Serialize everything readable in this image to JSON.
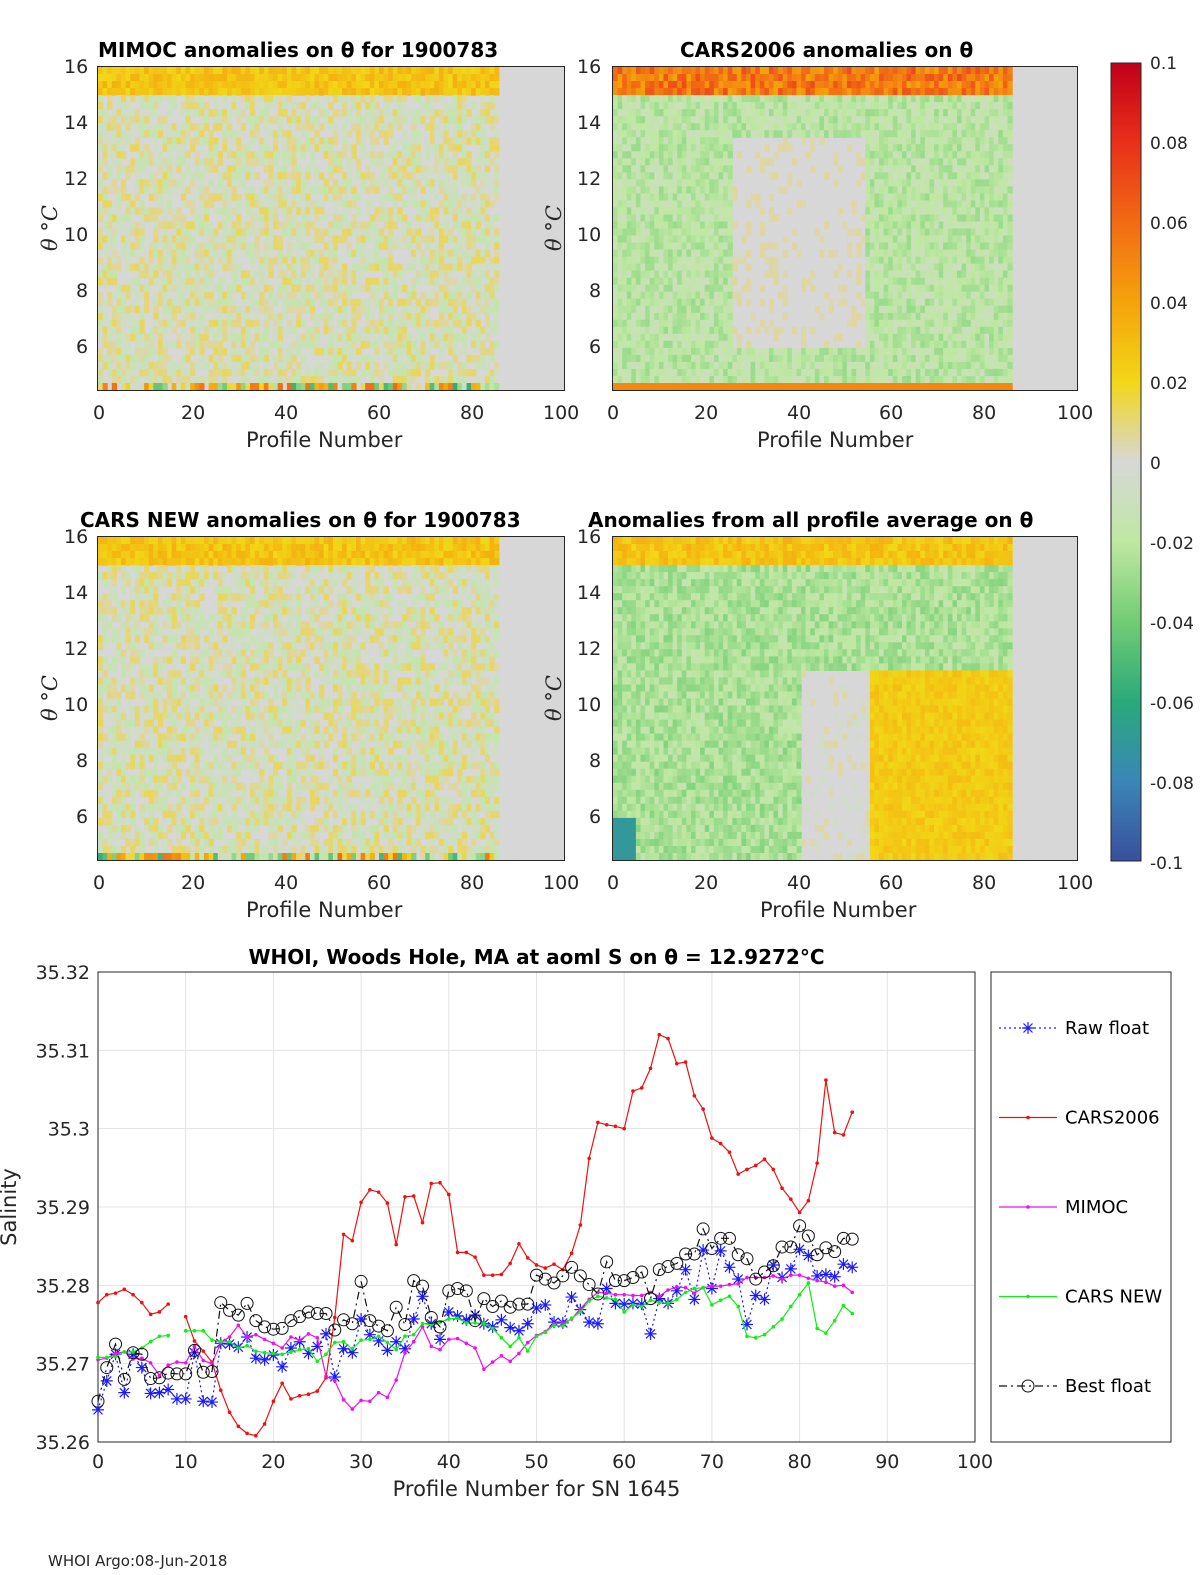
{
  "footer": "WHOI Argo:08-Jun-2018",
  "colors": {
    "zero": "#d7d7d7",
    "raw": "#1a1aff",
    "cars2006": "#ee1111",
    "mimoc": "#ee11ee",
    "carsnew": "#11ee11",
    "best": "#111111"
  },
  "heatmaps": [
    {
      "id": "mimoc",
      "title": "MIMOC anomalies on θ  for 1900783",
      "xlabel": "Profile Number",
      "ylabel": "θ °C",
      "xticks": [
        "0",
        "20",
        "40",
        "60",
        "80",
        "100"
      ],
      "yticks": [
        "6",
        "8",
        "10",
        "12",
        "14",
        "16"
      ],
      "pattern": "mixed"
    },
    {
      "id": "cars2006",
      "title": "CARS2006 anomalies on θ",
      "xlabel": "Profile Number",
      "ylabel": "θ °C",
      "xticks": [
        "0",
        "20",
        "40",
        "60",
        "80",
        "100"
      ],
      "yticks": [
        "6",
        "8",
        "10",
        "12",
        "14",
        "16"
      ],
      "pattern": "green"
    },
    {
      "id": "carsnew",
      "title": "CARS NEW anomalies on θ for 1900783",
      "xlabel": "Profile Number",
      "ylabel": "θ °C",
      "xticks": [
        "0",
        "20",
        "40",
        "60",
        "80",
        "100"
      ],
      "yticks": [
        "6",
        "8",
        "10",
        "12",
        "14",
        "16"
      ],
      "pattern": "mixed"
    },
    {
      "id": "allavg",
      "title": "Anomalies from all profile average on θ",
      "xlabel": "Profile Number",
      "ylabel": "θ °C",
      "xticks": [
        "0",
        "20",
        "40",
        "60",
        "80",
        "100"
      ],
      "yticks": [
        "6",
        "8",
        "10",
        "12",
        "14",
        "16"
      ],
      "pattern": "split"
    }
  ],
  "colorbar": {
    "ticks": [
      "0.1",
      "0.08",
      "0.06",
      "0.04",
      "0.02",
      "0",
      "-0.02",
      "-0.04",
      "-0.06",
      "-0.08",
      "-0.1"
    ],
    "range": [
      -0.1,
      0.1
    ]
  },
  "chart_data": {
    "type": "line",
    "title": "WHOI, Woods Hole, MA at aoml S on θ = 12.9272°C",
    "xlabel": "Profile Number for SN 1645",
    "ylabel": "Salinity",
    "xlim": [
      0,
      100
    ],
    "ylim": [
      35.26,
      35.32
    ],
    "xticks": [
      "0",
      "10",
      "20",
      "30",
      "40",
      "50",
      "60",
      "70",
      "80",
      "90",
      "100"
    ],
    "yticks": [
      "35.26",
      "35.27",
      "35.28",
      "35.29",
      "35.3",
      "35.31",
      "35.32"
    ],
    "grid": true,
    "legend_position": "right outside",
    "series": [
      {
        "name": "Raw float",
        "style": "dotted-star",
        "color": "#1a1aff",
        "x": [
          0,
          1,
          2,
          3,
          4,
          5,
          6,
          7,
          8,
          9,
          10,
          11,
          12,
          13,
          14,
          15,
          16,
          17,
          18,
          19,
          20,
          21,
          22,
          23,
          24,
          25,
          26,
          27,
          28,
          29,
          30,
          31,
          32,
          33,
          34,
          35,
          36,
          37,
          38,
          39,
          40,
          41,
          42,
          43,
          44,
          45,
          46,
          47,
          48,
          49,
          50,
          51,
          52,
          53,
          54,
          55,
          56,
          57,
          58,
          59,
          60,
          61,
          62,
          63,
          64,
          65,
          66,
          67,
          68,
          69,
          70,
          71,
          72,
          73,
          74,
          75,
          76,
          77,
          78,
          79,
          80,
          81,
          82,
          83,
          84,
          85,
          86
        ],
        "y": [
          35.2641,
          35.2678,
          35.2712,
          35.2663,
          35.2712,
          35.2695,
          35.2662,
          35.2663,
          35.2667,
          35.2655,
          35.2655,
          35.2714,
          35.2652,
          35.2651,
          35.2726,
          35.2725,
          35.2721,
          35.2734,
          35.2707,
          35.2705,
          35.2711,
          35.2696,
          35.272,
          35.2728,
          35.2713,
          35.2722,
          35.2738,
          35.2683,
          35.2719,
          35.2714,
          35.2757,
          35.2737,
          35.2729,
          35.2717,
          35.2728,
          35.2719,
          35.2757,
          35.2786,
          35.2751,
          35.2731,
          35.2766,
          35.2761,
          35.2756,
          35.2762,
          35.2751,
          35.2747,
          35.2756,
          35.2746,
          35.2742,
          35.2751,
          35.2771,
          35.2775,
          35.2753,
          35.2752,
          35.2785,
          35.2769,
          35.2753,
          35.2751,
          35.2796,
          35.2777,
          35.2776,
          35.2777,
          35.2776,
          35.2738,
          35.2783,
          35.2777,
          35.2793,
          35.282,
          35.2782,
          35.2845,
          35.2796,
          35.2844,
          35.2823,
          35.2808,
          35.275,
          35.2787,
          35.2782,
          35.2826,
          35.281,
          35.2821,
          35.2846,
          35.2838,
          35.2812,
          35.2814,
          35.2811,
          35.2827,
          35.2823
        ]
      },
      {
        "name": "CARS2006",
        "style": "solid-dot",
        "color": "#ee1111",
        "x": [
          0,
          1,
          2,
          3,
          4,
          5,
          6,
          7,
          8,
          9,
          10,
          11,
          12,
          13,
          14,
          15,
          16,
          17,
          18,
          19,
          20,
          21,
          22,
          23,
          24,
          25,
          26,
          27,
          28,
          29,
          30,
          31,
          32,
          33,
          34,
          35,
          36,
          37,
          38,
          39,
          40,
          41,
          42,
          43,
          44,
          45,
          46,
          47,
          48,
          49,
          50,
          51,
          52,
          53,
          54,
          55,
          56,
          57,
          58,
          59,
          60,
          61,
          62,
          63,
          64,
          65,
          66,
          67,
          68,
          69,
          70,
          71,
          72,
          73,
          74,
          75,
          76,
          77,
          78,
          79,
          80,
          81,
          82,
          83,
          84,
          85,
          86
        ],
        "y": [
          35.2778,
          35.2788,
          35.279,
          35.2795,
          35.2788,
          35.2778,
          35.2763,
          35.2766,
          35.2776,
          null,
          35.276,
          35.2729,
          35.2716,
          35.2702,
          35.2666,
          35.2638,
          35.262,
          35.2611,
          35.2608,
          35.2623,
          35.2652,
          35.2675,
          35.2655,
          35.2659,
          35.2661,
          35.2665,
          35.2682,
          35.2759,
          35.2865,
          35.2857,
          35.2906,
          35.2922,
          35.2919,
          35.2905,
          35.2852,
          35.2913,
          35.2914,
          35.288,
          35.293,
          35.2931,
          35.2916,
          35.2842,
          35.2842,
          35.2836,
          35.2813,
          35.2813,
          35.2814,
          35.2828,
          35.2853,
          35.2835,
          35.2826,
          35.2822,
          35.2827,
          35.282,
          35.2841,
          35.2877,
          35.2962,
          35.3008,
          35.3005,
          35.3003,
          35.3,
          35.3048,
          35.3052,
          35.3077,
          35.312,
          35.3115,
          35.3083,
          35.3085,
          35.3042,
          35.3025,
          35.2988,
          35.2981,
          35.297,
          35.2942,
          35.2948,
          35.2953,
          35.2961,
          35.2948,
          35.2924,
          35.291,
          35.2893,
          35.2908,
          35.2956,
          35.3062,
          35.2995,
          35.2992,
          35.3021
        ]
      },
      {
        "name": "MIMOC",
        "style": "solid-dot",
        "color": "#ee11ee",
        "x": [
          0,
          1,
          2,
          3,
          4,
          5,
          6,
          7,
          8,
          9,
          10,
          11,
          12,
          13,
          14,
          15,
          16,
          17,
          18,
          19,
          20,
          21,
          22,
          23,
          24,
          25,
          26,
          27,
          28,
          29,
          30,
          31,
          32,
          33,
          34,
          35,
          36,
          37,
          38,
          39,
          40,
          41,
          42,
          43,
          44,
          45,
          46,
          47,
          48,
          49,
          50,
          51,
          52,
          53,
          54,
          55,
          56,
          57,
          58,
          59,
          60,
          61,
          62,
          63,
          64,
          65,
          66,
          67,
          68,
          69,
          70,
          71,
          72,
          73,
          74,
          75,
          76,
          77,
          78,
          79,
          80,
          81,
          82,
          83,
          84,
          85,
          86
        ],
        "y": [
          35.2705,
          35.2707,
          35.2713,
          35.2715,
          35.2706,
          35.2707,
          35.2701,
          35.2685,
          35.2698,
          35.2702,
          35.2701,
          35.2722,
          35.2704,
          35.27,
          35.2727,
          35.2734,
          35.2749,
          35.2734,
          35.2737,
          35.2731,
          35.2726,
          35.272,
          35.2734,
          35.273,
          35.2738,
          35.2733,
          35.2684,
          35.2678,
          35.2654,
          35.2642,
          35.2653,
          35.2652,
          35.2663,
          35.2657,
          35.2679,
          35.2714,
          35.2728,
          35.2747,
          35.2722,
          35.2718,
          35.2731,
          35.2732,
          35.2726,
          35.272,
          35.2693,
          35.2702,
          35.271,
          35.2703,
          35.2713,
          35.2727,
          35.2736,
          35.2741,
          35.2751,
          35.2752,
          35.2757,
          35.277,
          35.2782,
          35.2791,
          35.279,
          35.2788,
          35.2788,
          35.2787,
          35.2787,
          35.2791,
          35.2786,
          35.2794,
          35.2798,
          35.2797,
          35.279,
          35.2797,
          35.2799,
          35.2799,
          35.2801,
          35.2802,
          35.281,
          35.281,
          35.281,
          35.2812,
          35.2808,
          35.2813,
          35.2813,
          35.2809,
          35.2806,
          35.2804,
          35.2799,
          35.28,
          35.2791
        ]
      },
      {
        "name": "CARS NEW",
        "style": "solid-dot",
        "color": "#11ee11",
        "x": [
          0,
          1,
          2,
          3,
          4,
          5,
          6,
          7,
          8,
          9,
          10,
          11,
          12,
          13,
          14,
          15,
          16,
          17,
          18,
          19,
          20,
          21,
          22,
          23,
          24,
          25,
          26,
          27,
          28,
          29,
          30,
          31,
          32,
          33,
          34,
          35,
          36,
          37,
          38,
          39,
          40,
          41,
          42,
          43,
          44,
          45,
          46,
          47,
          48,
          49,
          50,
          51,
          52,
          53,
          54,
          55,
          56,
          57,
          58,
          59,
          60,
          61,
          62,
          63,
          64,
          65,
          66,
          67,
          68,
          69,
          70,
          71,
          72,
          73,
          74,
          75,
          76,
          77,
          78,
          79,
          80,
          81,
          82,
          83,
          84,
          85,
          86
        ],
        "y": [
          35.2708,
          35.2708,
          35.2709,
          35.2715,
          35.2715,
          35.272,
          35.2728,
          35.2735,
          35.2736,
          null,
          35.2742,
          35.2742,
          35.2742,
          35.273,
          35.2728,
          35.2728,
          35.272,
          35.2723,
          35.2716,
          35.2714,
          35.2713,
          35.2712,
          35.2715,
          35.2718,
          35.2719,
          35.2703,
          35.2712,
          35.2727,
          35.2728,
          35.2719,
          35.273,
          35.2731,
          35.2735,
          35.2727,
          35.2718,
          35.2735,
          35.2737,
          35.2751,
          35.275,
          35.2753,
          35.2757,
          35.2758,
          35.2752,
          35.2752,
          35.2751,
          35.2745,
          35.2733,
          35.2722,
          35.2733,
          35.2716,
          35.2735,
          35.274,
          35.2749,
          35.2748,
          35.2758,
          35.2766,
          35.278,
          35.2786,
          35.2784,
          35.2782,
          35.2766,
          35.2775,
          35.2773,
          35.2781,
          35.2778,
          35.2777,
          35.2782,
          35.2791,
          35.2796,
          35.2797,
          35.2775,
          35.2781,
          35.2786,
          35.2773,
          35.2735,
          35.2733,
          35.2737,
          35.2747,
          35.2757,
          35.2773,
          35.2788,
          35.2803,
          35.2745,
          35.2739,
          35.2755,
          35.2774,
          35.2764
        ]
      },
      {
        "name": "Best float",
        "style": "dashdot-circle",
        "color": "#111111",
        "x": [
          0,
          1,
          2,
          3,
          4,
          5,
          6,
          7,
          8,
          9,
          10,
          11,
          12,
          13,
          14,
          15,
          16,
          17,
          18,
          19,
          20,
          21,
          22,
          23,
          24,
          25,
          26,
          27,
          28,
          29,
          30,
          31,
          32,
          33,
          34,
          35,
          36,
          37,
          38,
          39,
          40,
          41,
          42,
          43,
          44,
          45,
          46,
          47,
          48,
          49,
          50,
          51,
          52,
          53,
          54,
          55,
          56,
          57,
          58,
          59,
          60,
          61,
          62,
          63,
          64,
          65,
          66,
          67,
          68,
          69,
          70,
          71,
          72,
          73,
          74,
          75,
          76,
          77,
          78,
          79,
          80,
          81,
          82,
          83,
          84,
          85,
          86
        ],
        "y": [
          35.2652,
          35.2695,
          35.2725,
          35.268,
          35.2714,
          35.2712,
          35.2681,
          35.2682,
          35.2688,
          35.2687,
          35.2687,
          35.2717,
          35.2689,
          35.269,
          35.2778,
          35.2768,
          35.2762,
          35.2777,
          35.2755,
          35.2747,
          35.2744,
          35.2745,
          35.2755,
          35.276,
          35.2766,
          35.2764,
          35.2764,
          35.2743,
          35.2756,
          35.2751,
          35.2805,
          35.2755,
          35.2748,
          35.2742,
          35.2772,
          35.275,
          35.2806,
          35.2799,
          35.2759,
          35.2747,
          35.2793,
          35.2796,
          35.2793,
          35.2755,
          35.2783,
          35.2773,
          35.278,
          35.2772,
          35.2776,
          35.2776,
          35.2813,
          35.2808,
          35.2803,
          35.2812,
          35.2823,
          35.2812,
          35.2801,
          35.2789,
          35.283,
          35.2806,
          35.2806,
          35.281,
          35.2817,
          35.2783,
          35.282,
          35.2824,
          35.2828,
          35.284,
          35.284,
          35.2872,
          35.2847,
          35.286,
          35.286,
          35.2839,
          35.2834,
          35.2808,
          35.2817,
          35.2825,
          35.2849,
          35.2849,
          35.2876,
          35.2863,
          35.2839,
          35.2848,
          35.2843,
          35.286,
          35.2859
        ]
      }
    ]
  }
}
